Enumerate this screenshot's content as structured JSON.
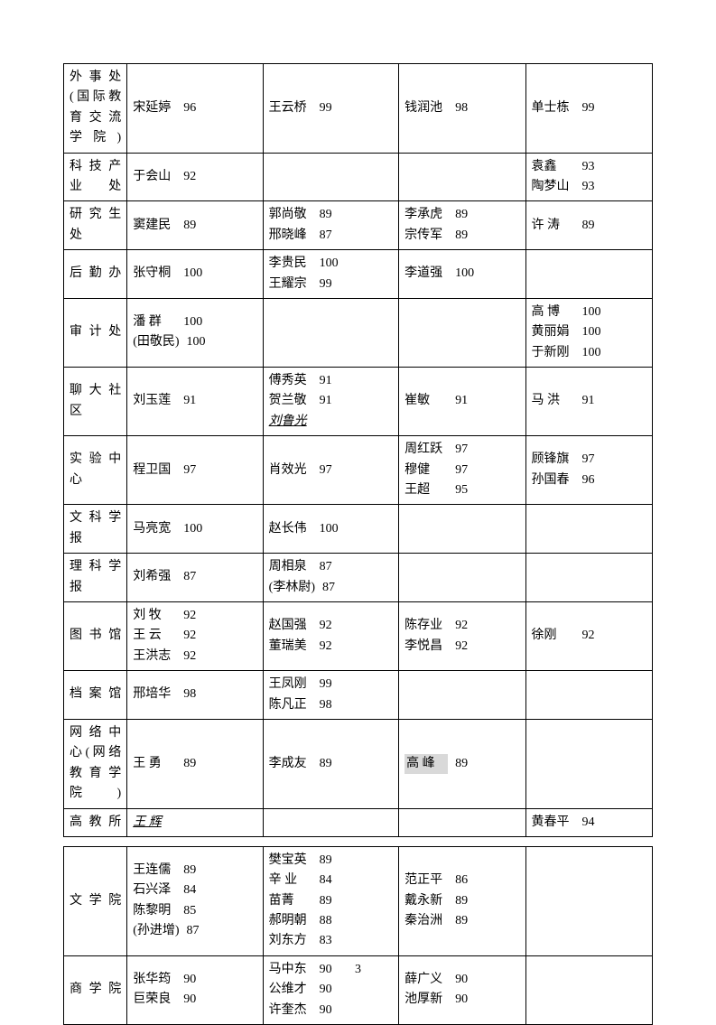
{
  "page_number": "3",
  "tables": [
    {
      "rows": [
        {
          "dept": "外 事 处(国际教育 交 流学院)",
          "cols": [
            [
              {
                "name": "宋延婷",
                "score": "96"
              }
            ],
            [
              {
                "name": "王云桥",
                "score": "99"
              }
            ],
            [
              {
                "name": "钱润池",
                "score": "98"
              }
            ],
            [
              {
                "name": "单士栋",
                "score": "99"
              }
            ]
          ]
        },
        {
          "dept": "科 技 产业处",
          "cols": [
            [
              {
                "name": "于会山",
                "score": "92"
              }
            ],
            [],
            [],
            [
              {
                "name": "袁鑫",
                "score": "93"
              },
              {
                "name": "陶梦山",
                "score": "93"
              }
            ]
          ]
        },
        {
          "dept": "研 究 生处",
          "cols": [
            [
              {
                "name": "窦建民",
                "score": "89"
              }
            ],
            [
              {
                "name": "郭尚敬",
                "score": "89"
              },
              {
                "name": "邢晓峰",
                "score": "87"
              }
            ],
            [
              {
                "name": "李承虎",
                "score": "89"
              },
              {
                "name": "宗传军",
                "score": "89"
              }
            ],
            [
              {
                "name": "许  涛",
                "score": "89"
              }
            ]
          ]
        },
        {
          "dept": "后勤办",
          "cols": [
            [
              {
                "name": "张守桐",
                "score": "100"
              }
            ],
            [
              {
                "name": "李贵民",
                "score": "100"
              },
              {
                "name": "王耀宗",
                "score": "99"
              }
            ],
            [
              {
                "name": "李道强",
                "score": "100"
              }
            ],
            []
          ]
        },
        {
          "dept": "审计处",
          "cols": [
            [
              {
                "name": "潘  群",
                "score": "100"
              },
              {
                "name": "(田敬民)",
                "score": "100",
                "paren": true
              }
            ],
            [],
            [],
            [
              {
                "name": "高  博",
                "score": "100"
              },
              {
                "name": "黄丽娟",
                "score": "100"
              },
              {
                "name": "于新刚",
                "score": "100"
              }
            ]
          ]
        },
        {
          "dept": "聊 大 社区",
          "cols": [
            [
              {
                "name": "刘玉莲",
                "score": "91"
              }
            ],
            [
              {
                "name": "傅秀英",
                "score": "91"
              },
              {
                "name": "贺兰敬",
                "score": "91"
              },
              {
                "name": "刘鲁光",
                "score": "",
                "ul_it": true
              }
            ],
            [
              {
                "name": "崔敏",
                "score": "91"
              }
            ],
            [
              {
                "name": "马  洪",
                "score": "91"
              }
            ]
          ]
        },
        {
          "dept": "实 验 中心",
          "cols": [
            [
              {
                "name": "程卫国",
                "score": "97"
              }
            ],
            [
              {
                "name": "肖效光",
                "score": "97"
              }
            ],
            [
              {
                "name": "周红跃",
                "score": "97"
              },
              {
                "name": "穆健",
                "score": "97"
              },
              {
                "name": "王超",
                "score": "95"
              }
            ],
            [
              {
                "name": "顾锋旗",
                "score": "97"
              },
              {
                "name": "孙国春",
                "score": "96"
              }
            ]
          ]
        },
        {
          "dept": "文 科 学报",
          "cols": [
            [
              {
                "name": "马亮宽",
                "score": "100"
              }
            ],
            [
              {
                "name": "赵长伟",
                "score": "100"
              }
            ],
            [],
            []
          ]
        },
        {
          "dept": "理 科 学报",
          "cols": [
            [
              {
                "name": "刘希强",
                "score": "87"
              }
            ],
            [
              {
                "name": "周相泉",
                "score": "87"
              },
              {
                "name": "(李林尉)",
                "score": "87",
                "paren": true
              }
            ],
            [],
            []
          ]
        },
        {
          "dept": "图书馆",
          "cols": [
            [
              {
                "name": "刘 牧",
                "score": "92"
              },
              {
                "name": "王  云",
                "score": "92"
              },
              {
                "name": "王洪志",
                "score": "92"
              }
            ],
            [
              {
                "name": "赵国强",
                "score": "92"
              },
              {
                "name": "董瑞美",
                "score": "92"
              }
            ],
            [
              {
                "name": "陈存业",
                "score": "92"
              },
              {
                "name": "李悦昌",
                "score": "92"
              }
            ],
            [
              {
                "name": "徐刚",
                "score": "92"
              }
            ]
          ]
        },
        {
          "dept": "档案馆",
          "cols": [
            [
              {
                "name": "邢培华",
                "score": "98"
              }
            ],
            [
              {
                "name": "王凤刚",
                "score": "99"
              },
              {
                "name": "陈凡正",
                "score": "98"
              }
            ],
            [],
            []
          ]
        },
        {
          "dept": "网 络 中心(网络教 育 学院)",
          "cols": [
            [
              {
                "name": "王  勇",
                "score": "89"
              }
            ],
            [
              {
                "name": "李成友",
                "score": "89"
              }
            ],
            [
              {
                "name": "高  峰",
                "score": "89",
                "hl": true
              }
            ],
            []
          ]
        },
        {
          "dept": "高教所",
          "cols": [
            [
              {
                "name": "王  辉  ",
                "score": "",
                "ul_it": true
              }
            ],
            [],
            [],
            [
              {
                "name": "黄春平",
                "score": "94"
              }
            ]
          ]
        }
      ]
    },
    {
      "rows": [
        {
          "dept": "文学院",
          "cols": [
            [
              {
                "name": "王连儒",
                "score": "89"
              },
              {
                "name": "石兴泽",
                "score": "84"
              },
              {
                "name": "陈黎明",
                "score": "85"
              },
              {
                "name": "(孙进增)",
                "score": "87",
                "paren": true
              }
            ],
            [
              {
                "name": "樊宝英",
                "score": "89"
              },
              {
                "name": "辛  业",
                "score": "84"
              },
              {
                "name": "苗菁",
                "score": "89"
              },
              {
                "name": "郝明朝",
                "score": "88"
              },
              {
                "name": "刘东方",
                "score": "83"
              }
            ],
            [
              {
                "name": "范正平",
                "score": "86"
              },
              {
                "name": "戴永新",
                "score": "89"
              },
              {
                "name": "秦治洲",
                "score": "89"
              }
            ],
            []
          ]
        },
        {
          "dept": "商学院",
          "cols": [
            [
              {
                "name": "张华筠",
                "score": "90"
              },
              {
                "name": "巨荣良",
                "score": "90"
              }
            ],
            [
              {
                "name": "马中东",
                "score": "90"
              },
              {
                "name": "公维才",
                "score": "90"
              },
              {
                "name": "许奎杰",
                "score": "90"
              }
            ],
            [
              {
                "name": "薛广义",
                "score": "90"
              },
              {
                "name": "池厚新",
                "score": "90"
              }
            ],
            []
          ]
        }
      ]
    }
  ]
}
